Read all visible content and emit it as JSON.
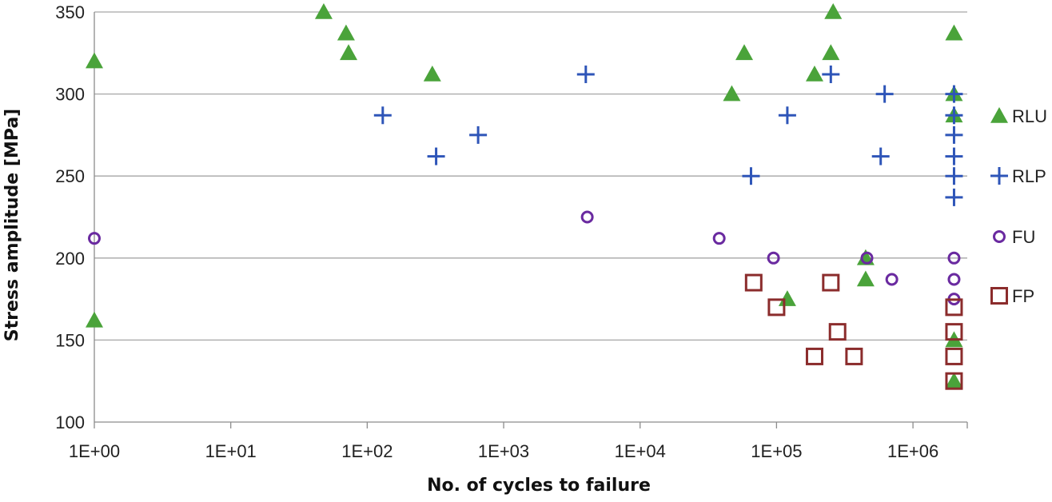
{
  "chart_data": {
    "type": "scatter",
    "title": "",
    "xlabel": "No. of cycles to failure",
    "ylabel": "Stress amplitude [MPa]",
    "x_scale": "log",
    "xlim": [
      1,
      2500000
    ],
    "ylim": [
      100,
      350
    ],
    "x_ticks": [
      1,
      10,
      100,
      1000,
      10000,
      100000,
      1000000
    ],
    "x_tick_labels": [
      "1E+00",
      "1E+01",
      "1E+02",
      "1E+03",
      "1E+04",
      "1E+05",
      "1E+06"
    ],
    "y_ticks": [
      100,
      150,
      200,
      250,
      300,
      350
    ],
    "y_tick_labels": [
      "100",
      "150",
      "200",
      "250",
      "300",
      "350"
    ],
    "grid": "horizontal",
    "legend_position": "right",
    "series": [
      {
        "name": "RLU",
        "marker": "triangle",
        "color": "#4aa33a",
        "points": [
          [
            1,
            320
          ],
          [
            1,
            162
          ],
          [
            48,
            350
          ],
          [
            70,
            337
          ],
          [
            73,
            325
          ],
          [
            300,
            312
          ],
          [
            47000,
            300
          ],
          [
            58000,
            325
          ],
          [
            120000,
            175
          ],
          [
            190000,
            312
          ],
          [
            250000,
            325
          ],
          [
            260000,
            350
          ],
          [
            450000,
            187
          ],
          [
            450000,
            200
          ],
          [
            2000000,
            337
          ],
          [
            2000000,
            300
          ],
          [
            2000000,
            287
          ],
          [
            2000000,
            150
          ],
          [
            2000000,
            125
          ]
        ]
      },
      {
        "name": "RLP",
        "marker": "plus",
        "color": "#2e55b8",
        "points": [
          [
            130,
            287
          ],
          [
            320,
            262
          ],
          [
            650,
            275
          ],
          [
            4000,
            312
          ],
          [
            65000,
            250
          ],
          [
            120000,
            287
          ],
          [
            250000,
            312
          ],
          [
            580000,
            262
          ],
          [
            620000,
            300
          ],
          [
            2000000,
            300
          ],
          [
            2000000,
            287
          ],
          [
            2000000,
            275
          ],
          [
            2000000,
            262
          ],
          [
            2000000,
            250
          ],
          [
            2000000,
            237
          ]
        ]
      },
      {
        "name": "FU",
        "marker": "circle",
        "color": "#6a2aa0",
        "points": [
          [
            1,
            212
          ],
          [
            4100,
            225
          ],
          [
            38000,
            212
          ],
          [
            95000,
            200
          ],
          [
            460000,
            200
          ],
          [
            700000,
            187
          ],
          [
            2000000,
            200
          ],
          [
            2000000,
            187
          ],
          [
            2000000,
            175
          ]
        ]
      },
      {
        "name": "FP",
        "marker": "square",
        "color": "#8b2c2c",
        "points": [
          [
            68000,
            185
          ],
          [
            100000,
            170
          ],
          [
            190000,
            140
          ],
          [
            250000,
            185
          ],
          [
            280000,
            155
          ],
          [
            370000,
            140
          ],
          [
            2000000,
            170
          ],
          [
            2000000,
            155
          ],
          [
            2000000,
            140
          ],
          [
            2000000,
            125
          ]
        ]
      }
    ]
  }
}
